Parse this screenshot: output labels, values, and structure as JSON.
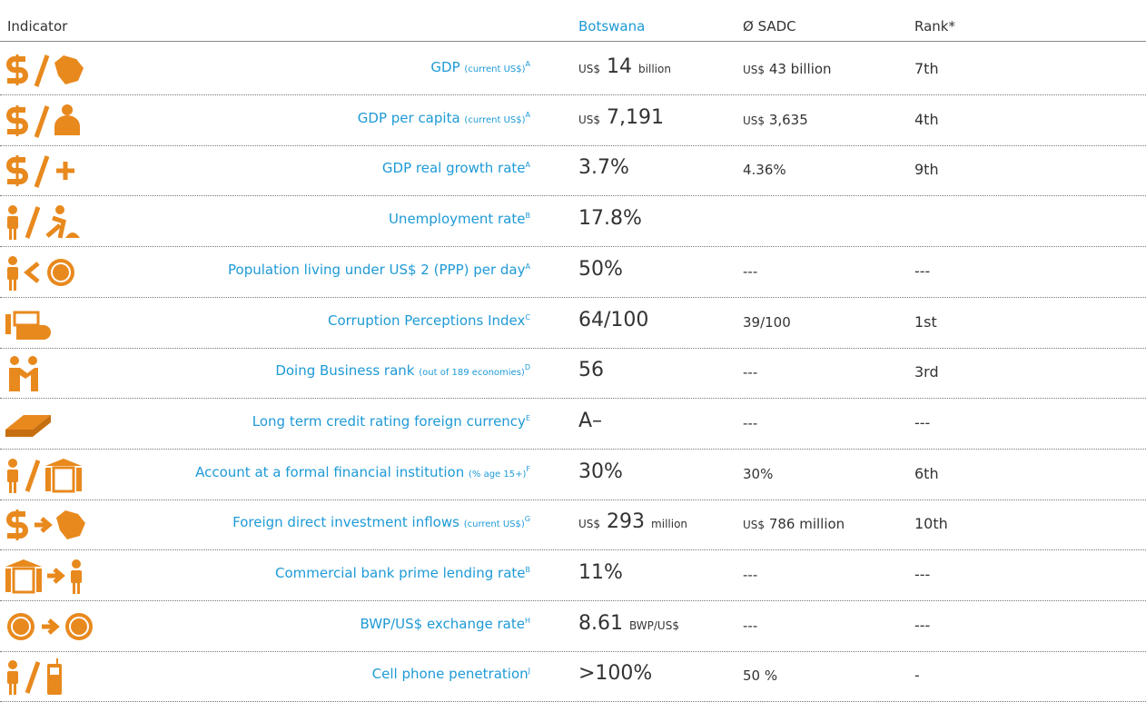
{
  "header": {
    "indicator": "Indicator",
    "botswana": "Botswana",
    "sadc": "Ø SADC",
    "rank": "Rank*"
  },
  "rows": [
    {
      "indicator": {
        "name": "GDP",
        "qualifier": "(current US$)",
        "note": "A"
      },
      "botswana": {
        "pre": "US$",
        "main": "14",
        "post": "billion"
      },
      "sadc": {
        "pre": "US$",
        "main": "43 billion"
      },
      "rank": "7th"
    },
    {
      "indicator": {
        "name": "GDP per capita",
        "qualifier": "(current US$)",
        "note": "A"
      },
      "botswana": {
        "pre": "US$",
        "main": "7,191"
      },
      "sadc": {
        "pre": "US$",
        "main": "3,635"
      },
      "rank": "4th"
    },
    {
      "indicator": {
        "name": "GDP real growth rate",
        "note": "A"
      },
      "botswana": "3.7%",
      "sadc": "4.36%",
      "rank": "9th"
    },
    {
      "indicator": {
        "name": "Unemployment rate",
        "note": "B"
      },
      "botswana": "17.8%"
    },
    {
      "indicator": {
        "name": "Population living under US$ 2 (PPP) per day",
        "note": "A"
      },
      "botswana": "50%",
      "sadc": "---",
      "rank": "---"
    },
    {
      "indicator": {
        "name": "Corruption Perceptions Index",
        "note": "C"
      },
      "botswana": "64/100",
      "sadc": "39/100",
      "rank": "1st"
    },
    {
      "indicator": {
        "name": "Doing Business rank",
        "qualifier": "(out of 189 economies)",
        "note": "D"
      },
      "botswana": "56",
      "sadc": "---",
      "rank": "3rd"
    },
    {
      "indicator": {
        "name": "Long term credit rating foreign currency",
        "note": "E"
      },
      "botswana": "A–",
      "sadc": "---",
      "rank": "---"
    },
    {
      "indicator": {
        "name": "Account at a formal financial institution",
        "qualifier": "(% age 15+)",
        "note": "F"
      },
      "botswana": "30%",
      "sadc": "30%",
      "rank": "6th"
    },
    {
      "indicator": {
        "name": "Foreign direct investment inflows",
        "qualifier": "(current US$)",
        "note": "G"
      },
      "botswana": {
        "pre": "US$",
        "main": "293",
        "post": "million"
      },
      "sadc": {
        "pre": "US$",
        "main": "786 million"
      },
      "rank": "10th"
    },
    {
      "indicator": {
        "name": "Commercial bank prime lending rate",
        "note": "B"
      },
      "botswana": "11%",
      "sadc": "---",
      "rank": "---"
    },
    {
      "indicator": {
        "name": "BWP/US$ exchange rate",
        "note": "H"
      },
      "botswana": {
        "main": "8.61",
        "post": "BWP/US$"
      },
      "sadc": "---",
      "rank": "---"
    },
    {
      "indicator": {
        "name": "Cell phone penetration",
        "note": "J"
      },
      "botswana": ">100%",
      "sadc": "50 %",
      "rank": "-"
    }
  ]
}
